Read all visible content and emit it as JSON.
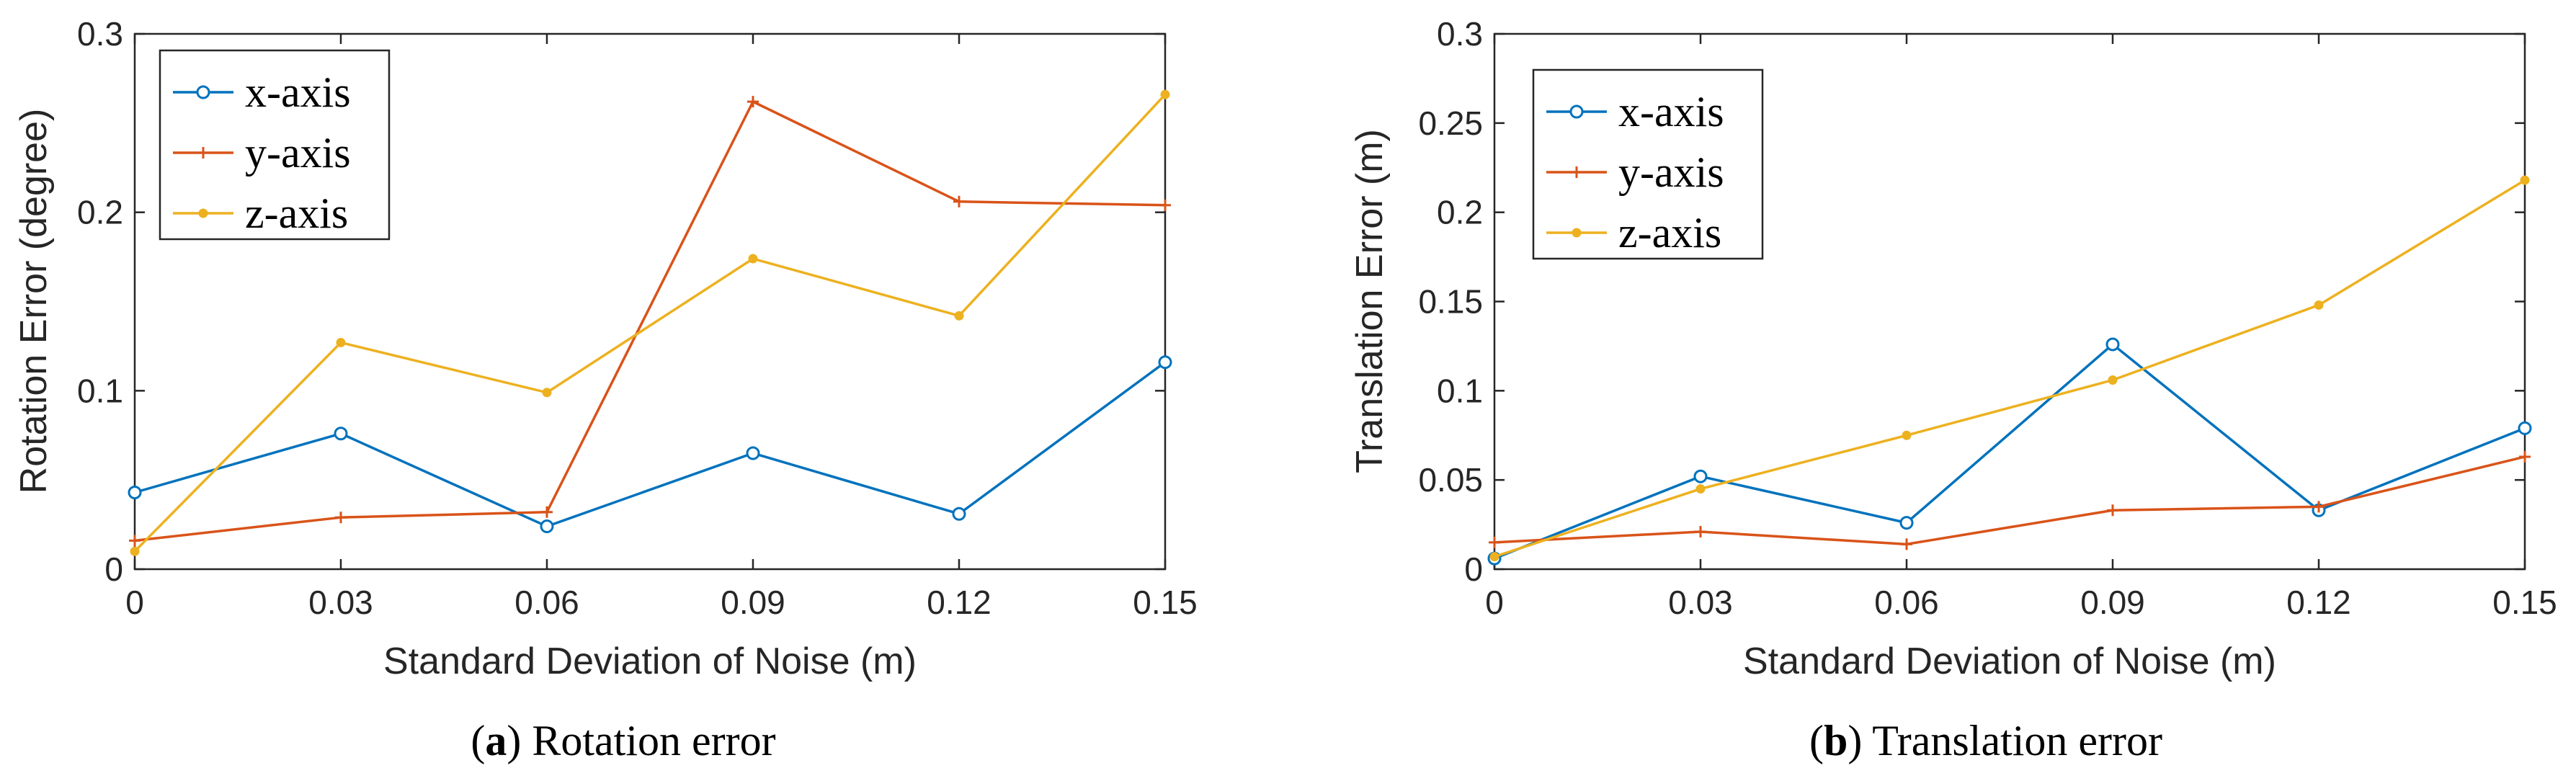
{
  "chart_data": [
    {
      "type": "line",
      "caption_letter": "a",
      "caption_text": "Rotation error",
      "xlabel": "Standard Deviation of Noise (m)",
      "ylabel": "Rotation Error (degree)",
      "x": [
        0,
        0.03,
        0.06,
        0.09,
        0.12,
        0.15
      ],
      "x_tick_labels": [
        "0",
        "0.03",
        "0.06",
        "0.09",
        "0.12",
        "0.15"
      ],
      "y_tick_labels": [
        "0",
        "0.1",
        "0.2",
        "0.3"
      ],
      "y_ticks": [
        0,
        0.1,
        0.2,
        0.3
      ],
      "xlim": [
        0,
        0.15
      ],
      "ylim": [
        0,
        0.3
      ],
      "legend_position": "top-left",
      "series": [
        {
          "name": "x-axis",
          "color": "#0072BD",
          "marker": "circle",
          "values": [
            0.043,
            0.076,
            0.024,
            0.065,
            0.031,
            0.116
          ]
        },
        {
          "name": "y-axis",
          "color": "#D95319",
          "marker": "plus",
          "values": [
            0.016,
            0.029,
            0.032,
            0.262,
            0.206,
            0.204
          ]
        },
        {
          "name": "z-axis",
          "color": "#EDB120",
          "marker": "dot",
          "values": [
            0.01,
            0.127,
            0.099,
            0.174,
            0.142,
            0.266
          ]
        }
      ]
    },
    {
      "type": "line",
      "caption_letter": "b",
      "caption_text": "Translation error",
      "xlabel": "Standard Deviation of Noise (m)",
      "ylabel": "Translation Error (m)",
      "x": [
        0,
        0.03,
        0.06,
        0.09,
        0.12,
        0.15
      ],
      "x_tick_labels": [
        "0",
        "0.03",
        "0.06",
        "0.09",
        "0.12",
        "0.15"
      ],
      "y_tick_labels": [
        "0",
        "0.05",
        "0.1",
        "0.15",
        "0.2",
        "0.25",
        "0.3"
      ],
      "y_ticks": [
        0,
        0.05,
        0.1,
        0.15,
        0.2,
        0.25,
        0.3
      ],
      "xlim": [
        0,
        0.15
      ],
      "ylim": [
        0,
        0.3
      ],
      "legend_position": "top-left",
      "series": [
        {
          "name": "x-axis",
          "color": "#0072BD",
          "marker": "circle",
          "values": [
            0.006,
            0.052,
            0.026,
            0.126,
            0.033,
            0.079
          ]
        },
        {
          "name": "y-axis",
          "color": "#D95319",
          "marker": "plus",
          "values": [
            0.015,
            0.021,
            0.014,
            0.033,
            0.035,
            0.063
          ]
        },
        {
          "name": "z-axis",
          "color": "#EDB120",
          "marker": "dot",
          "values": [
            0.007,
            0.045,
            0.075,
            0.106,
            0.148,
            0.218
          ]
        }
      ]
    }
  ]
}
